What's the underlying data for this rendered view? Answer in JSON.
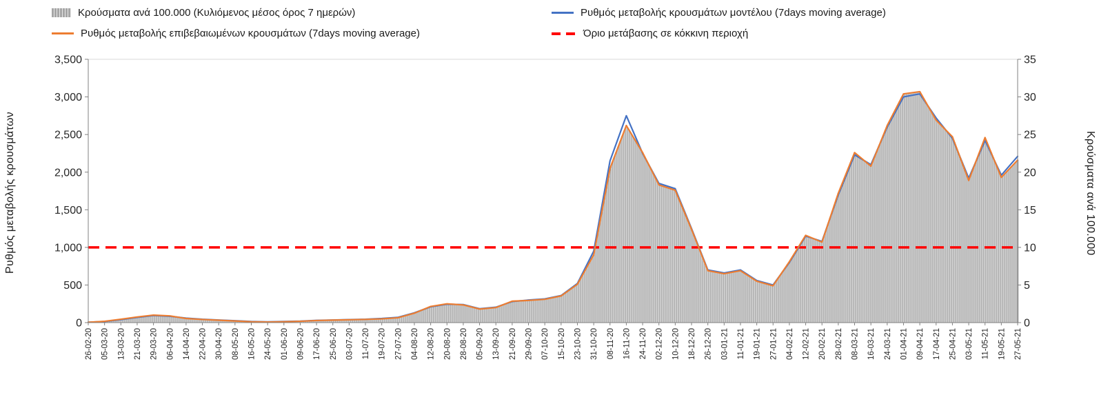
{
  "legend": {
    "items": [
      {
        "label": "Κρούσματα ανά 100.000 (Κυλιόμενος μέσος όρος 7 ημερών)",
        "type": "bar",
        "color": "#a6a6a6"
      },
      {
        "label": "Ρυθμός μεταβολής κρουσμάτων μοντέλου (7days moving average)",
        "type": "line",
        "color": "#4472c4"
      },
      {
        "label": "Ρυθμός μεταβολής επιβεβαιωμένων κρουσμάτων (7days moving average)",
        "type": "line",
        "color": "#ed7d31"
      },
      {
        "label": "Όριο μετάβασης σε κόκκινη περιοχή",
        "type": "dashed",
        "color": "#ff0000"
      }
    ]
  },
  "chart_data": {
    "type": "bar",
    "subtype": "combo-bar-line-dual-axis",
    "x": [
      "26-02-20",
      "05-03-20",
      "13-03-20",
      "21-03-20",
      "29-03-20",
      "06-04-20",
      "14-04-20",
      "22-04-20",
      "30-04-20",
      "08-05-20",
      "16-05-20",
      "24-05-20",
      "01-06-20",
      "09-06-20",
      "17-06-20",
      "25-06-20",
      "03-07-20",
      "11-07-20",
      "19-07-20",
      "27-07-20",
      "04-08-20",
      "12-08-20",
      "20-08-20",
      "28-08-20",
      "05-09-20",
      "13-09-20",
      "21-09-20",
      "29-09-20",
      "07-10-20",
      "15-10-20",
      "23-10-20",
      "31-10-20",
      "08-11-20",
      "16-11-20",
      "24-11-20",
      "02-12-20",
      "10-12-20",
      "18-12-20",
      "26-12-20",
      "03-01-21",
      "11-01-21",
      "19-01-21",
      "27-01-21",
      "04-02-21",
      "12-02-21",
      "20-02-21",
      "28-02-21",
      "08-03-21",
      "16-03-21",
      "24-03-21",
      "01-04-21",
      "09-04-21",
      "17-04-21",
      "25-04-21",
      "03-05-21",
      "11-05-21",
      "19-05-21",
      "27-05-21"
    ],
    "series": [
      {
        "name": "Κρούσματα ανά 100.000 (Κυλιόμενος μέσος όρος 7 ημερών)",
        "type": "bar",
        "axis": "right",
        "color": "#d2d2d2",
        "edge": "#8c8c8c",
        "values": [
          0.05,
          0.2,
          0.45,
          0.75,
          1.0,
          0.9,
          0.55,
          0.4,
          0.3,
          0.2,
          0.1,
          0.08,
          0.12,
          0.18,
          0.28,
          0.33,
          0.38,
          0.43,
          0.5,
          0.65,
          1.25,
          2.15,
          2.5,
          2.35,
          1.8,
          2.0,
          2.85,
          2.95,
          3.1,
          3.55,
          5.1,
          9.0,
          20.5,
          26.2,
          22.6,
          18.3,
          17.6,
          12.4,
          6.9,
          6.5,
          6.9,
          5.5,
          4.9,
          8.1,
          11.6,
          10.7,
          17.2,
          22.6,
          20.8,
          26.2,
          30.4,
          30.7,
          26.9,
          24.7,
          18.9,
          24.6,
          19.3,
          21.6
        ]
      },
      {
        "name": "Ρυθμός μεταβολής κρουσμάτων μοντέλου (7days moving average)",
        "type": "line",
        "axis": "left",
        "color": "#4472c4",
        "values": [
          5,
          15,
          40,
          70,
          95,
          85,
          60,
          45,
          35,
          25,
          15,
          10,
          15,
          20,
          30,
          35,
          40,
          45,
          55,
          70,
          130,
          210,
          245,
          240,
          185,
          205,
          280,
          300,
          315,
          360,
          520,
          950,
          2150,
          2750,
          2250,
          1850,
          1780,
          1250,
          700,
          660,
          700,
          560,
          500,
          800,
          1150,
          1080,
          1700,
          2230,
          2100,
          2600,
          3000,
          3040,
          2720,
          2450,
          1920,
          2420,
          1960,
          2210
        ]
      },
      {
        "name": "Ρυθμός μεταβολής επιβεβαιωμένων κρουσμάτων (7days moving average)",
        "type": "line",
        "axis": "left",
        "color": "#ed7d31",
        "values": [
          5,
          18,
          45,
          75,
          100,
          90,
          55,
          42,
          32,
          22,
          12,
          8,
          12,
          18,
          28,
          33,
          38,
          43,
          50,
          65,
          125,
          215,
          250,
          235,
          180,
          200,
          285,
          295,
          310,
          355,
          510,
          900,
          2050,
          2620,
          2260,
          1830,
          1760,
          1240,
          690,
          650,
          690,
          550,
          490,
          810,
          1160,
          1070,
          1720,
          2260,
          2080,
          2620,
          3040,
          3070,
          2690,
          2470,
          1890,
          2460,
          1930,
          2160
        ]
      },
      {
        "name": "Όριο μετάβασης σε κόκκινη περιοχή",
        "type": "threshold",
        "axis": "left",
        "color": "#ff0000",
        "value": 1000
      }
    ],
    "left_axis": {
      "title": "Ρυθμός μεταβολής κρουσμάτων",
      "min": 0,
      "max": 3500,
      "tick_values": [
        0,
        500,
        1000,
        1500,
        2000,
        2500,
        3000,
        3500
      ],
      "tick_labels": [
        "0",
        "500",
        "1,000",
        "1,500",
        "2,000",
        "2,500",
        "3,000",
        "3,500"
      ]
    },
    "right_axis": {
      "title": "Κρούσματα ανά 100.000",
      "min": 0,
      "max": 35,
      "tick_values": [
        0,
        5,
        10,
        15,
        20,
        25,
        30,
        35
      ],
      "tick_labels": [
        "0",
        "5",
        "10",
        "15",
        "20",
        "25",
        "30",
        "35"
      ]
    },
    "grid": false,
    "legend_position": "top"
  }
}
